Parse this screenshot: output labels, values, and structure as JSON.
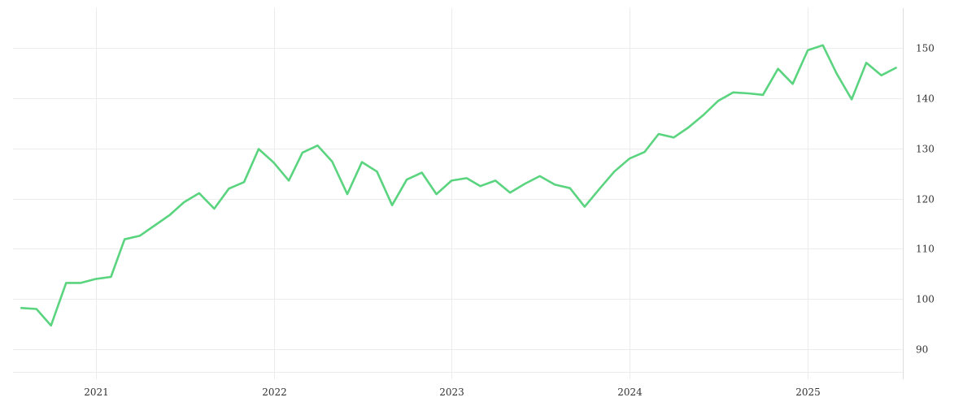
{
  "chart_data": {
    "type": "line",
    "title": "",
    "xlabel": "",
    "ylabel": "",
    "x_axis": {
      "type": "date",
      "ticks": [
        "2021",
        "2022",
        "2023",
        "2024",
        "2025"
      ]
    },
    "y_axis": {
      "position": "right",
      "ticks": [
        90,
        100,
        110,
        120,
        130,
        140,
        150
      ],
      "ylim": [
        84,
        158
      ]
    },
    "xlim": [
      "2020-07-15",
      "2025-07-15"
    ],
    "grid": true,
    "legend": "none",
    "series": [
      {
        "color": "#5ad47f",
        "points": [
          [
            "2020-08-01",
            98.2
          ],
          [
            "2020-09-01",
            98.0
          ],
          [
            "2020-10-01",
            94.7
          ],
          [
            "2020-11-01",
            103.2
          ],
          [
            "2020-12-01",
            103.2
          ],
          [
            "2021-01-01",
            104.0
          ],
          [
            "2021-02-01",
            104.4
          ],
          [
            "2021-03-01",
            111.9
          ],
          [
            "2021-04-01",
            112.6
          ],
          [
            "2021-05-01",
            114.6
          ],
          [
            "2021-06-01",
            116.7
          ],
          [
            "2021-07-01",
            119.3
          ],
          [
            "2021-08-01",
            121.1
          ],
          [
            "2021-09-01",
            118.0
          ],
          [
            "2021-10-01",
            122.0
          ],
          [
            "2021-11-01",
            123.3
          ],
          [
            "2021-12-01",
            129.9
          ],
          [
            "2022-01-01",
            127.2
          ],
          [
            "2022-02-01",
            123.6
          ],
          [
            "2022-03-01",
            129.2
          ],
          [
            "2022-04-01",
            130.6
          ],
          [
            "2022-05-01",
            127.4
          ],
          [
            "2022-06-01",
            120.9
          ],
          [
            "2022-07-01",
            127.3
          ],
          [
            "2022-08-01",
            125.4
          ],
          [
            "2022-09-01",
            118.7
          ],
          [
            "2022-10-01",
            123.8
          ],
          [
            "2022-11-01",
            125.2
          ],
          [
            "2022-12-01",
            120.9
          ],
          [
            "2023-01-01",
            123.6
          ],
          [
            "2023-02-01",
            124.1
          ],
          [
            "2023-03-01",
            122.5
          ],
          [
            "2023-04-01",
            123.6
          ],
          [
            "2023-05-01",
            121.2
          ],
          [
            "2023-06-01",
            123.0
          ],
          [
            "2023-07-01",
            124.5
          ],
          [
            "2023-08-01",
            122.8
          ],
          [
            "2023-09-01",
            122.1
          ],
          [
            "2023-10-01",
            118.4
          ],
          [
            "2023-11-01",
            122.0
          ],
          [
            "2023-12-01",
            125.4
          ],
          [
            "2024-01-01",
            128.0
          ],
          [
            "2024-02-01",
            129.3
          ],
          [
            "2024-03-01",
            132.9
          ],
          [
            "2024-04-01",
            132.2
          ],
          [
            "2024-05-01",
            134.2
          ],
          [
            "2024-06-01",
            136.7
          ],
          [
            "2024-07-01",
            139.5
          ],
          [
            "2024-08-01",
            141.2
          ],
          [
            "2024-09-01",
            141.0
          ],
          [
            "2024-10-01",
            140.7
          ],
          [
            "2024-11-01",
            145.9
          ],
          [
            "2024-12-01",
            142.9
          ],
          [
            "2025-01-01",
            149.6
          ],
          [
            "2025-02-01",
            150.6
          ],
          [
            "2025-03-01",
            145.0
          ],
          [
            "2025-04-01",
            139.8
          ],
          [
            "2025-05-01",
            147.1
          ],
          [
            "2025-06-01",
            144.6
          ],
          [
            "2025-07-01",
            146.1
          ]
        ]
      }
    ]
  }
}
